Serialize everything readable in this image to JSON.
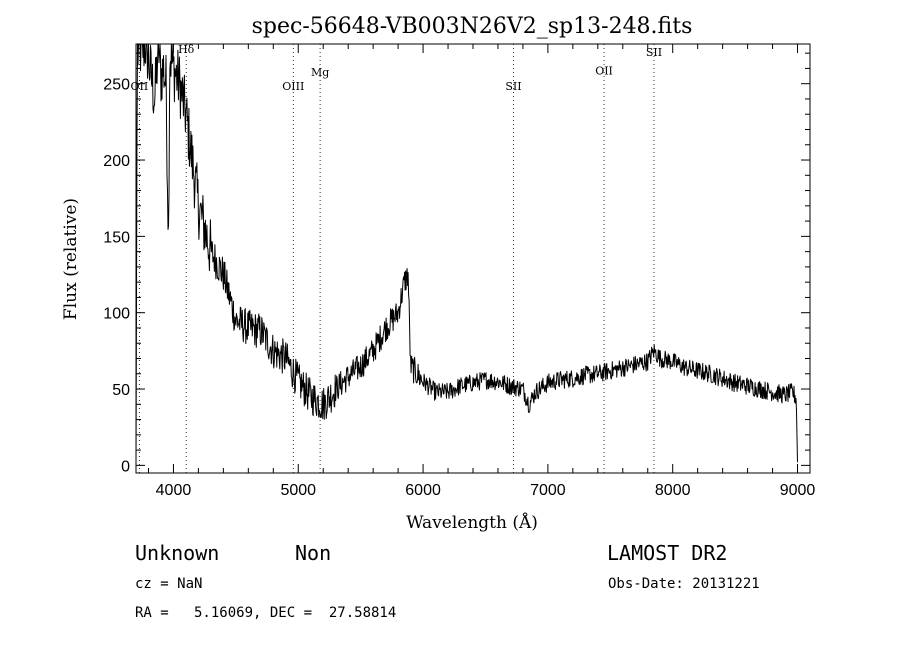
{
  "chart_data": {
    "type": "line",
    "title": "spec-56648-VB003N26V2_sp13-248.fits",
    "xlabel": "Wavelength (Å)",
    "ylabel": "Flux (relative)",
    "xlim": [
      3700,
      9100
    ],
    "ylim": [
      -5,
      276
    ],
    "xticks": [
      4000,
      5000,
      6000,
      7000,
      8000,
      9000
    ],
    "yticks": [
      0,
      50,
      100,
      150,
      200,
      250
    ],
    "x_minor_step": 200,
    "y_minor_step": 10,
    "series": [
      {
        "name": "spectrum",
        "anchors": [
          [
            3700,
            0
          ],
          [
            3710,
            270
          ],
          [
            3780,
            276
          ],
          [
            3850,
            240
          ],
          [
            3880,
            276
          ],
          [
            3900,
            255
          ],
          [
            3920,
            260
          ],
          [
            3940,
            250
          ],
          [
            3960,
            150
          ],
          [
            3970,
            270
          ],
          [
            4000,
            260
          ],
          [
            4050,
            250
          ],
          [
            4100,
            230
          ],
          [
            4150,
            200
          ],
          [
            4200,
            170
          ],
          [
            4300,
            140
          ],
          [
            4400,
            125
          ],
          [
            4500,
            95
          ],
          [
            4600,
            90
          ],
          [
            4700,
            88
          ],
          [
            4800,
            75
          ],
          [
            4900,
            70
          ],
          [
            5000,
            55
          ],
          [
            5100,
            45
          ],
          [
            5200,
            40
          ],
          [
            5300,
            50
          ],
          [
            5400,
            58
          ],
          [
            5500,
            65
          ],
          [
            5600,
            75
          ],
          [
            5700,
            90
          ],
          [
            5800,
            100
          ],
          [
            5850,
            120
          ],
          [
            5880,
            125
          ],
          [
            5900,
            65
          ],
          [
            6000,
            55
          ],
          [
            6100,
            48
          ],
          [
            6200,
            48
          ],
          [
            6300,
            52
          ],
          [
            6400,
            54
          ],
          [
            6500,
            56
          ],
          [
            6600,
            55
          ],
          [
            6700,
            52
          ],
          [
            6800,
            50
          ],
          [
            6850,
            40
          ],
          [
            6900,
            48
          ],
          [
            7000,
            54
          ],
          [
            7100,
            56
          ],
          [
            7200,
            57
          ],
          [
            7300,
            59
          ],
          [
            7400,
            60
          ],
          [
            7500,
            62
          ],
          [
            7600,
            64
          ],
          [
            7700,
            66
          ],
          [
            7800,
            68
          ],
          [
            7850,
            75
          ],
          [
            7900,
            70
          ],
          [
            8000,
            68
          ],
          [
            8100,
            64
          ],
          [
            8200,
            62
          ],
          [
            8300,
            60
          ],
          [
            8400,
            57
          ],
          [
            8500,
            54
          ],
          [
            8600,
            52
          ],
          [
            8700,
            50
          ],
          [
            8800,
            48
          ],
          [
            8900,
            46
          ],
          [
            8960,
            48
          ],
          [
            8990,
            44
          ],
          [
            9000,
            2
          ]
        ],
        "noise_amplitude": 6
      }
    ],
    "lines": [
      {
        "label": "OII",
        "x": 3727,
        "label_y": 246
      },
      {
        "label": "Hδ",
        "x": 4102,
        "label_y": 270
      },
      {
        "label": "OIII",
        "x": 4960,
        "label_y": 246
      },
      {
        "label": "Mg",
        "x": 5175,
        "label_y": 255
      },
      {
        "label": "SII",
        "x": 6724,
        "label_y": 246
      },
      {
        "label": "OII",
        "x": 7450,
        "label_y": 256
      },
      {
        "label": "SII",
        "x": 7850,
        "label_y": 268
      }
    ]
  },
  "info": {
    "class": "Unknown",
    "subclass": "Non",
    "survey": "LAMOST DR2",
    "cz": "cz = NaN",
    "obs_date": "Obs-Date: 20131221",
    "radec": "RA =   5.16069, DEC =  27.58814"
  }
}
